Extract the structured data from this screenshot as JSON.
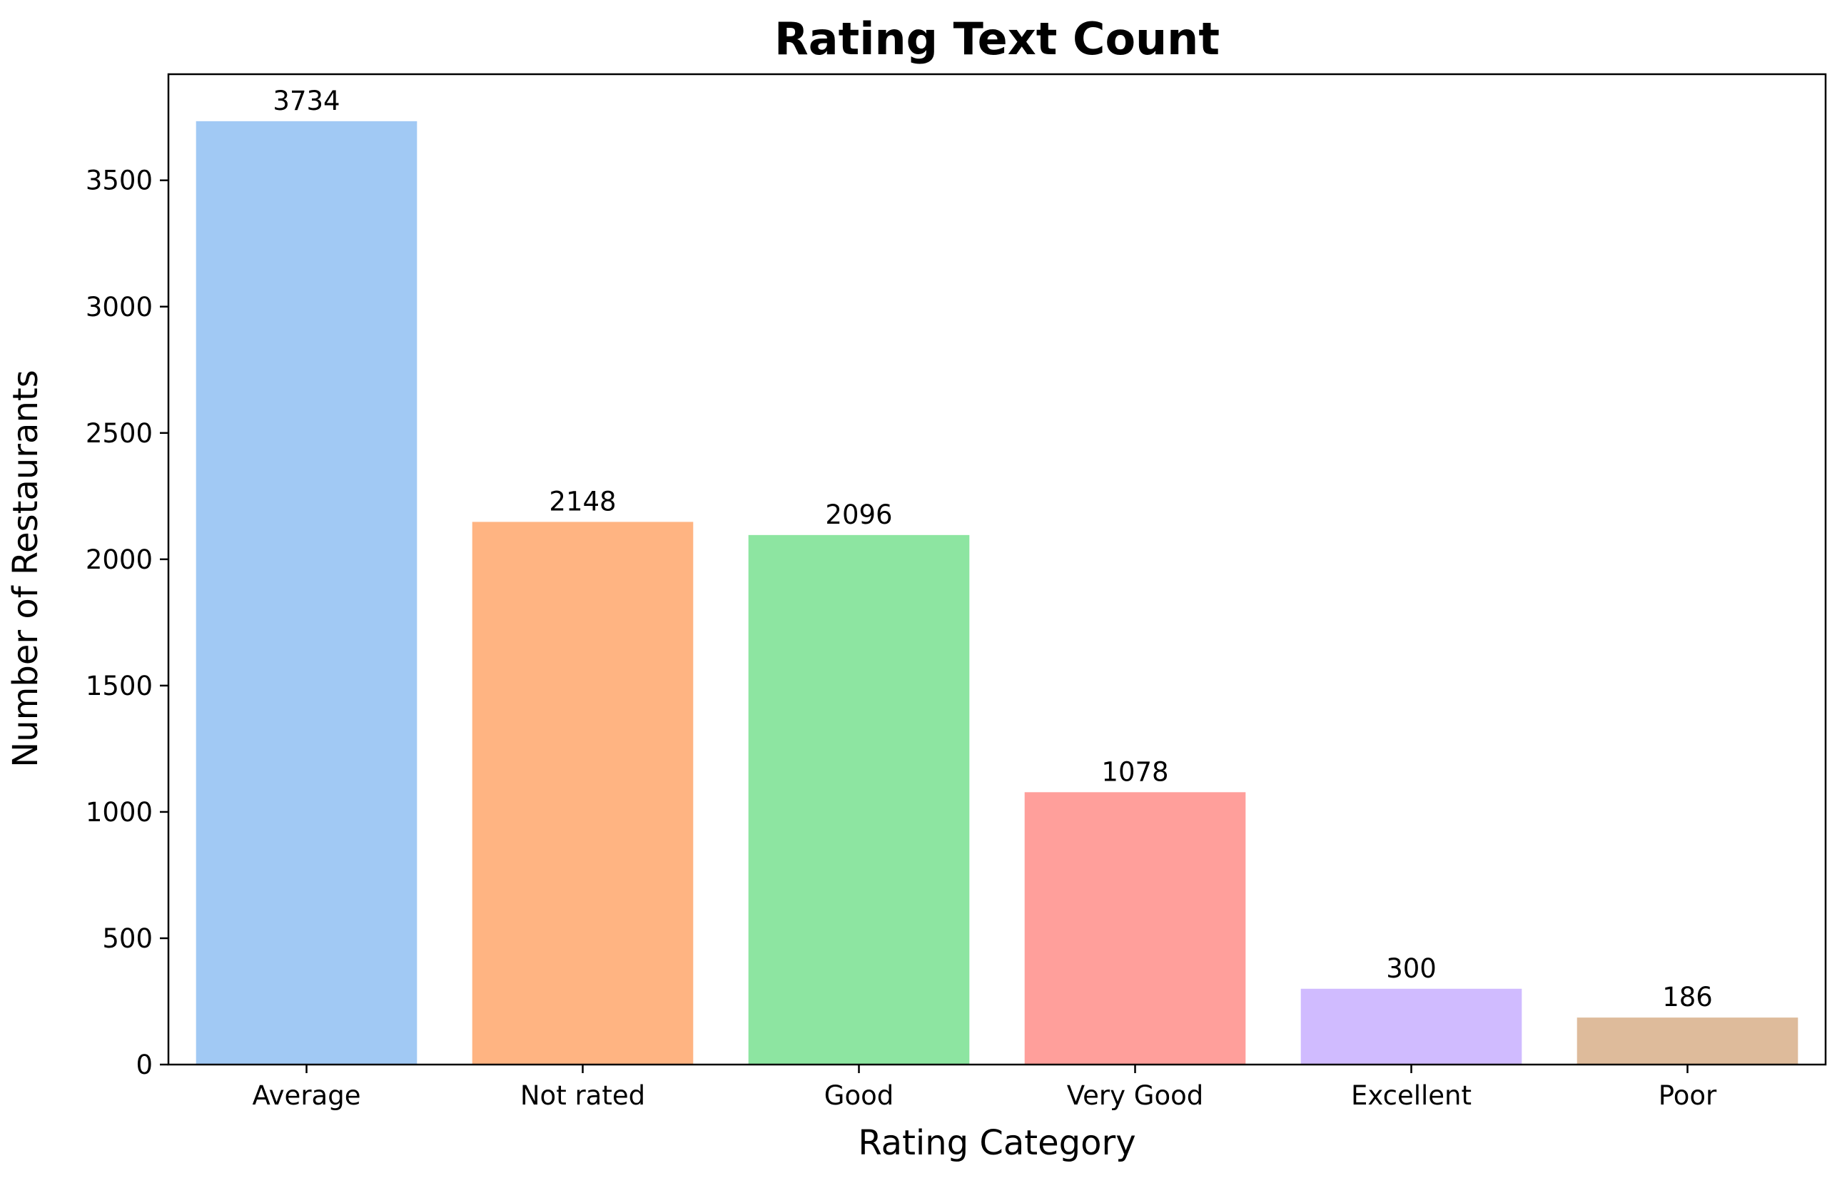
{
  "chart_data": {
    "type": "bar",
    "title": "Rating Text Count",
    "xlabel": "Rating Category",
    "ylabel": "Number of Restaurants",
    "categories": [
      "Average",
      "Not rated",
      "Good",
      "Very Good",
      "Excellent",
      "Poor"
    ],
    "values": [
      3734,
      2148,
      2096,
      1078,
      300,
      186
    ],
    "data_labels": [
      "3734",
      "2148",
      "2096",
      "1078",
      "300",
      "186"
    ],
    "colors": [
      "#a1c9f4",
      "#ffb482",
      "#8de5a1",
      "#ff9f9b",
      "#d0bbff",
      "#debb9b"
    ],
    "ylim": [
      0,
      3920
    ],
    "yticks": [
      0,
      500,
      1000,
      1500,
      2000,
      2500,
      3000,
      3500
    ],
    "ytick_labels": [
      "0",
      "500",
      "1000",
      "1500",
      "2000",
      "2500",
      "3000",
      "3500"
    ],
    "grid": false,
    "legend": false
  }
}
